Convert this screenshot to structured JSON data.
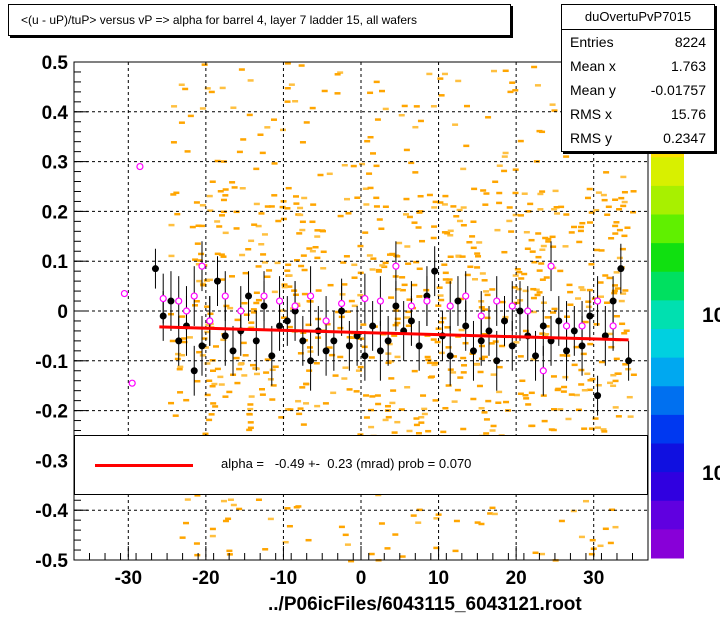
{
  "title": "<(u - uP)/tuP> versus   vP => alpha for barrel 4, layer 7 ladder 15, all wafers",
  "stats": {
    "name": "duOvertuPvP7015",
    "rows": [
      {
        "label": "Entries",
        "value": "8224"
      },
      {
        "label": "Mean x",
        "value": "1.763"
      },
      {
        "label": "Mean y",
        "value": "-0.01757"
      },
      {
        "label": "RMS x",
        "value": "15.76"
      },
      {
        "label": "RMS y",
        "value": "0.2347"
      }
    ]
  },
  "fit_label": "alpha =   -0.49 +-  0.23 (mrad) prob = 0.070",
  "file_label": "../P06icFiles/6043115_6043121.root",
  "colors": {
    "fit": "#ff0000",
    "histogram": "#ffa500",
    "black_points": "#000000",
    "magenta_points": "#ff00ff"
  },
  "chart_data": {
    "type": "scatter",
    "xlim": [
      -37,
      37
    ],
    "ylim": [
      -0.5,
      0.5
    ],
    "x_ticks": [
      "-30",
      "-20",
      "-10",
      "0",
      "10",
      "20",
      "30"
    ],
    "y_ticks": [
      "-0.5",
      "-0.4",
      "-0.3",
      "-0.2",
      "-0.1",
      "0",
      "0.1",
      "0.2",
      "0.3",
      "0.4",
      "0.5"
    ],
    "grid": true,
    "palette_labels": [
      "10",
      "10"
    ],
    "fit_line": {
      "x": [
        -26,
        34.5
      ],
      "y": [
        -0.032,
        -0.058
      ]
    },
    "black_points": [
      {
        "x": -26.5,
        "y": 0.085,
        "err": 0.04
      },
      {
        "x": -25.5,
        "y": -0.01,
        "err": 0.05
      },
      {
        "x": -24.5,
        "y": 0.02,
        "err": 0.06
      },
      {
        "x": -23.5,
        "y": -0.06,
        "err": 0.05
      },
      {
        "x": -22.5,
        "y": -0.03,
        "err": 0.06
      },
      {
        "x": -21.5,
        "y": -0.12,
        "err": 0.05
      },
      {
        "x": -20.5,
        "y": -0.07,
        "err": 0.06
      },
      {
        "x": -19.5,
        "y": -0.02,
        "err": 0.05
      },
      {
        "x": -18.5,
        "y": 0.06,
        "err": 0.05
      },
      {
        "x": -17.5,
        "y": -0.05,
        "err": 0.06
      },
      {
        "x": -16.5,
        "y": -0.08,
        "err": 0.05
      },
      {
        "x": -15.5,
        "y": -0.04,
        "err": 0.05
      },
      {
        "x": -14.5,
        "y": 0.03,
        "err": 0.05
      },
      {
        "x": -13.5,
        "y": -0.06,
        "err": 0.06
      },
      {
        "x": -12.5,
        "y": 0.01,
        "err": 0.05
      },
      {
        "x": -11.5,
        "y": -0.09,
        "err": 0.06
      },
      {
        "x": -10.5,
        "y": -0.03,
        "err": 0.05
      },
      {
        "x": -9.5,
        "y": -0.02,
        "err": 0.05
      },
      {
        "x": -8.5,
        "y": 0.0,
        "err": 0.06
      },
      {
        "x": -7.5,
        "y": -0.06,
        "err": 0.05
      },
      {
        "x": -6.5,
        "y": -0.1,
        "err": 0.06
      },
      {
        "x": -5.5,
        "y": -0.04,
        "err": 0.05
      },
      {
        "x": -4.5,
        "y": -0.08,
        "err": 0.05
      },
      {
        "x": -3.5,
        "y": -0.06,
        "err": 0.06
      },
      {
        "x": -2.5,
        "y": 0.0,
        "err": 0.05
      },
      {
        "x": -1.5,
        "y": -0.07,
        "err": 0.05
      },
      {
        "x": -0.5,
        "y": -0.05,
        "err": 0.06
      },
      {
        "x": 0.5,
        "y": -0.09,
        "err": 0.05
      },
      {
        "x": 1.5,
        "y": -0.03,
        "err": 0.05
      },
      {
        "x": 2.5,
        "y": -0.08,
        "err": 0.06
      },
      {
        "x": 3.5,
        "y": -0.06,
        "err": 0.05
      },
      {
        "x": 4.5,
        "y": 0.01,
        "err": 0.05
      },
      {
        "x": 5.5,
        "y": -0.04,
        "err": 0.06
      },
      {
        "x": 6.5,
        "y": -0.02,
        "err": 0.05
      },
      {
        "x": 7.5,
        "y": -0.07,
        "err": 0.05
      },
      {
        "x": 8.5,
        "y": 0.03,
        "err": 0.06
      },
      {
        "x": 9.5,
        "y": 0.08,
        "err": 0.05
      },
      {
        "x": 10.5,
        "y": -0.05,
        "err": 0.05
      },
      {
        "x": 11.5,
        "y": -0.09,
        "err": 0.06
      },
      {
        "x": 12.5,
        "y": 0.02,
        "err": 0.05
      },
      {
        "x": 13.5,
        "y": -0.03,
        "err": 0.05
      },
      {
        "x": 14.5,
        "y": -0.08,
        "err": 0.06
      },
      {
        "x": 15.5,
        "y": -0.06,
        "err": 0.05
      },
      {
        "x": 16.5,
        "y": -0.04,
        "err": 0.05
      },
      {
        "x": 17.5,
        "y": -0.1,
        "err": 0.06
      },
      {
        "x": 18.5,
        "y": -0.02,
        "err": 0.05
      },
      {
        "x": 19.5,
        "y": -0.07,
        "err": 0.05
      },
      {
        "x": 20.5,
        "y": 0.0,
        "err": 0.06
      },
      {
        "x": 21.5,
        "y": -0.05,
        "err": 0.05
      },
      {
        "x": 22.5,
        "y": -0.09,
        "err": 0.05
      },
      {
        "x": 23.5,
        "y": -0.03,
        "err": 0.06
      },
      {
        "x": 24.5,
        "y": -0.06,
        "err": 0.05
      },
      {
        "x": 25.5,
        "y": -0.02,
        "err": 0.05
      },
      {
        "x": 26.5,
        "y": -0.08,
        "err": 0.06
      },
      {
        "x": 27.5,
        "y": -0.04,
        "err": 0.05
      },
      {
        "x": 28.5,
        "y": -0.07,
        "err": 0.06
      },
      {
        "x": 29.5,
        "y": -0.01,
        "err": 0.05
      },
      {
        "x": 30.5,
        "y": -0.17,
        "err": 0.04
      },
      {
        "x": 31.5,
        "y": -0.05,
        "err": 0.06
      },
      {
        "x": 32.5,
        "y": 0.02,
        "err": 0.05
      },
      {
        "x": 33.5,
        "y": 0.085,
        "err": 0.05
      },
      {
        "x": 34.5,
        "y": -0.1,
        "err": 0.04
      }
    ],
    "magenta_points": [
      {
        "x": -30.5,
        "y": 0.035,
        "err": 0.0
      },
      {
        "x": -29.5,
        "y": -0.145,
        "err": 0.0
      },
      {
        "x": -28.5,
        "y": 0.29,
        "err": 0.0
      },
      {
        "x": -25.5,
        "y": 0.025,
        "err": 0.05
      },
      {
        "x": -23.5,
        "y": 0.02,
        "err": 0.05
      },
      {
        "x": -22.5,
        "y": 0.0,
        "err": 0.05
      },
      {
        "x": -21.5,
        "y": 0.03,
        "err": 0.06
      },
      {
        "x": -20.5,
        "y": 0.09,
        "err": 0.05
      },
      {
        "x": -19.5,
        "y": -0.02,
        "err": 0.05
      },
      {
        "x": -17.5,
        "y": 0.03,
        "err": 0.05
      },
      {
        "x": -15.5,
        "y": 0.0,
        "err": 0.05
      },
      {
        "x": -12.5,
        "y": 0.03,
        "err": 0.05
      },
      {
        "x": -10.5,
        "y": 0.02,
        "err": 0.05
      },
      {
        "x": -8.5,
        "y": 0.01,
        "err": 0.05
      },
      {
        "x": -6.5,
        "y": 0.03,
        "err": 0.06
      },
      {
        "x": -4.5,
        "y": -0.02,
        "err": 0.05
      },
      {
        "x": -2.5,
        "y": 0.015,
        "err": 0.05
      },
      {
        "x": 0.5,
        "y": 0.025,
        "err": 0.05
      },
      {
        "x": 2.5,
        "y": 0.02,
        "err": 0.05
      },
      {
        "x": 4.5,
        "y": 0.09,
        "err": 0.05
      },
      {
        "x": 6.5,
        "y": 0.01,
        "err": 0.05
      },
      {
        "x": 8.5,
        "y": 0.02,
        "err": 0.05
      },
      {
        "x": 11.5,
        "y": 0.01,
        "err": 0.05
      },
      {
        "x": 13.5,
        "y": 0.03,
        "err": 0.05
      },
      {
        "x": 15.5,
        "y": -0.01,
        "err": 0.05
      },
      {
        "x": 17.5,
        "y": 0.02,
        "err": 0.05
      },
      {
        "x": 19.5,
        "y": 0.01,
        "err": 0.05
      },
      {
        "x": 21.5,
        "y": 0.0,
        "err": 0.05
      },
      {
        "x": 23.5,
        "y": -0.12,
        "err": 0.05
      },
      {
        "x": 24.5,
        "y": 0.09,
        "err": 0.05
      },
      {
        "x": 26.5,
        "y": -0.03,
        "err": 0.05
      },
      {
        "x": 28.5,
        "y": -0.03,
        "err": 0.05
      },
      {
        "x": 30.5,
        "y": 0.02,
        "err": 0.05
      },
      {
        "x": 32.5,
        "y": -0.03,
        "err": 0.05
      }
    ]
  }
}
